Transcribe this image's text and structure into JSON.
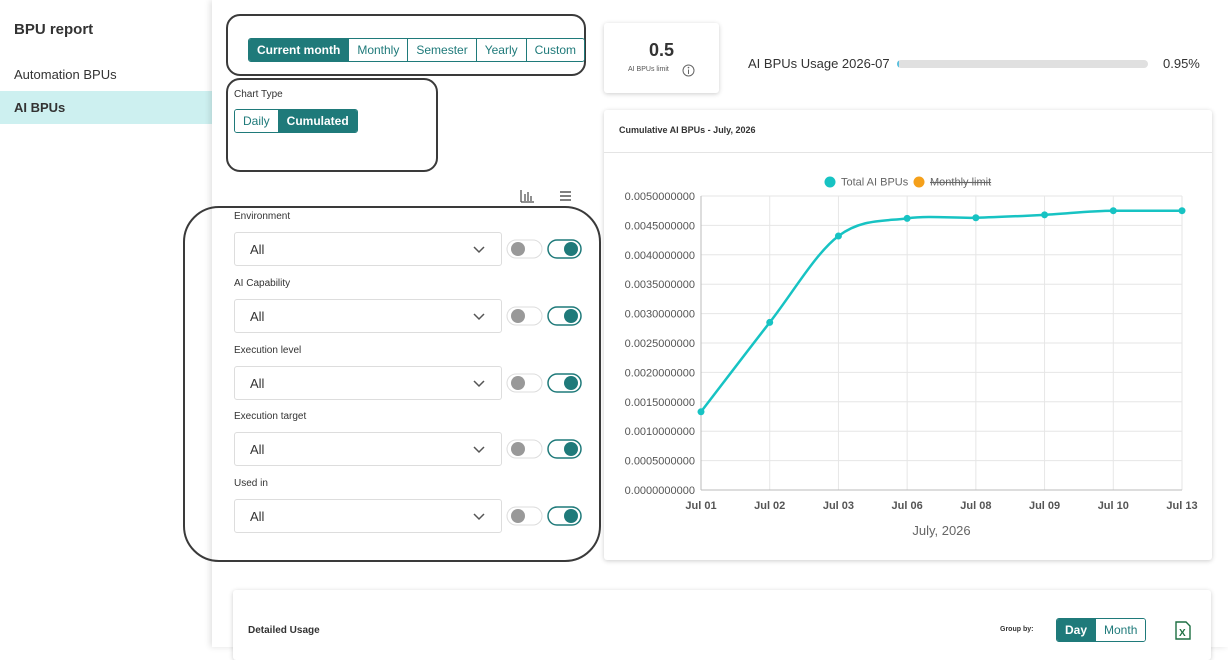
{
  "sidebar": {
    "title": "BPU report",
    "items": [
      "Automation BPUs",
      "AI BPUs"
    ],
    "active": 1
  },
  "period": {
    "options": [
      "Current month",
      "Monthly",
      "Semester",
      "Yearly",
      "Custom"
    ],
    "active": 0
  },
  "chart_type": {
    "label": "Chart Type",
    "options": [
      "Daily",
      "Cumulated"
    ],
    "active": 1
  },
  "filters": [
    {
      "label": "Environment",
      "value": "All"
    },
    {
      "label": "AI Capability",
      "value": "All"
    },
    {
      "label": "Execution level",
      "value": "All"
    },
    {
      "label": "Execution target",
      "value": "All"
    },
    {
      "label": "Used in",
      "value": "All"
    }
  ],
  "kpi": {
    "value": "0.5",
    "label": "AI BPUs limit"
  },
  "usage": {
    "label": "AI BPUs Usage 2026-07",
    "value": 0.95,
    "value_label": "0.95%"
  },
  "chart_data": {
    "type": "line",
    "title": "Cumulative AI BPUs - July, 2026",
    "x_label": "July, 2026",
    "categories": [
      "Jul 01",
      "Jul 02",
      "Jul 03",
      "Jul 06",
      "Jul 08",
      "Jul 09",
      "Jul 10",
      "Jul 13"
    ],
    "series": [
      {
        "name": "Total AI BPUs",
        "color": "#17c3c3",
        "values": [
          0.00133,
          0.00285,
          0.00432,
          0.00462,
          0.00463,
          0.00468,
          0.00475,
          0.00475
        ]
      },
      {
        "name": "Monthly limit",
        "color": "#f5a01a",
        "hidden": true
      }
    ],
    "ylim": [
      0,
      0.005
    ],
    "yticks": [
      {
        "value": 0,
        "label": "0.0000000000"
      },
      {
        "value": 0.0005,
        "label": "0.0005000000"
      },
      {
        "value": 0.001,
        "label": "0.0010000000"
      },
      {
        "value": 0.0015,
        "label": "0.0015000000"
      },
      {
        "value": 0.002,
        "label": "0.0020000000"
      },
      {
        "value": 0.0025,
        "label": "0.0025000000"
      },
      {
        "value": 0.003,
        "label": "0.0030000000"
      },
      {
        "value": 0.0035,
        "label": "0.0035000000"
      },
      {
        "value": 0.004,
        "label": "0.0040000000"
      },
      {
        "value": 0.0045,
        "label": "0.0045000000"
      },
      {
        "value": 0.005,
        "label": "0.0050000000"
      }
    ],
    "grid": true
  },
  "detailed": {
    "title": "Detailed Usage",
    "group_label": "Group by:",
    "group_options": [
      "Day",
      "Month"
    ],
    "active": 0
  }
}
